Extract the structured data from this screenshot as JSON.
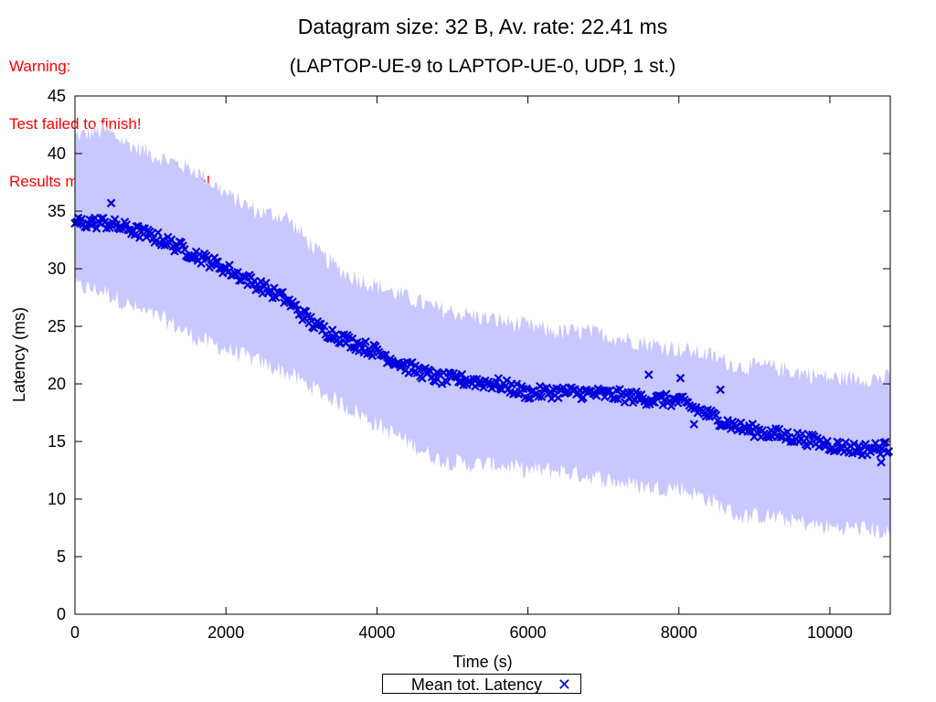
{
  "warning": {
    "line1": "Warning:",
    "line2": "Test failed to finish!",
    "line3": "Results may not be accurate!",
    "color": "#ff0000"
  },
  "chart_data": {
    "type": "scatter",
    "title": "Datagram size: 32 B, Av. rate: 22.41 ms",
    "subtitle": "(LAPTOP-UE-9 to LAPTOP-UE-0, UDP, 1 st.)",
    "xlabel": "Time (s)",
    "ylabel": "Latency (ms)",
    "xlim": [
      0,
      10800
    ],
    "ylim": [
      0,
      45
    ],
    "xticks": [
      0,
      2000,
      4000,
      6000,
      8000,
      10000
    ],
    "yticks": [
      0,
      5,
      10,
      15,
      20,
      25,
      30,
      35,
      40,
      45
    ],
    "grid": false,
    "legend_position": "bottom-center",
    "series": [
      {
        "name": "Mean tot. Latency",
        "marker": "x",
        "color": "#0000dd",
        "x": [
          0,
          400,
          800,
          1200,
          1600,
          2000,
          2400,
          2800,
          3200,
          3600,
          4000,
          4400,
          4800,
          5200,
          5600,
          6000,
          6400,
          6800,
          7200,
          7600,
          8000,
          8400,
          8800,
          9200,
          9600,
          10000,
          10400,
          10800
        ],
        "y": [
          34.0,
          34.0,
          33.3,
          32.4,
          31.2,
          30.0,
          28.7,
          27.3,
          25.0,
          23.8,
          22.8,
          21.5,
          20.5,
          20.3,
          20.0,
          19.2,
          19.3,
          19.2,
          19.0,
          18.7,
          18.5,
          17.3,
          16.2,
          15.7,
          15.3,
          14.7,
          14.3,
          14.5
        ]
      }
    ],
    "band": {
      "name": "range",
      "color": "#c8c8ff",
      "x": [
        0,
        400,
        800,
        1200,
        1600,
        2000,
        2400,
        2800,
        3200,
        3600,
        4000,
        4400,
        4800,
        5200,
        5600,
        6000,
        6400,
        6800,
        7200,
        7600,
        8000,
        8400,
        8800,
        9200,
        9600,
        10000,
        10400,
        10800
      ],
      "upper": [
        41.5,
        42.0,
        40.5,
        39.5,
        38.5,
        36.5,
        35.0,
        34.5,
        31.5,
        29.5,
        28.5,
        27.5,
        26.5,
        26.0,
        25.5,
        25.0,
        24.5,
        24.5,
        24.0,
        23.5,
        23.0,
        22.5,
        21.5,
        21.5,
        21.0,
        20.5,
        20.5,
        20.5
      ],
      "lower": [
        28.5,
        28.0,
        26.5,
        25.5,
        24.0,
        23.0,
        22.0,
        21.0,
        19.5,
        18.0,
        16.5,
        15.0,
        13.5,
        13.0,
        13.0,
        12.5,
        12.5,
        12.0,
        11.5,
        11.0,
        11.0,
        10.0,
        8.5,
        8.5,
        8.0,
        7.5,
        7.5,
        7.0
      ]
    },
    "outliers": [
      {
        "x": 480,
        "y": 35.7
      },
      {
        "x": 7600,
        "y": 20.8
      },
      {
        "x": 8020,
        "y": 20.5
      },
      {
        "x": 8550,
        "y": 19.5
      },
      {
        "x": 8200,
        "y": 16.5
      },
      {
        "x": 10680,
        "y": 13.2
      }
    ]
  }
}
